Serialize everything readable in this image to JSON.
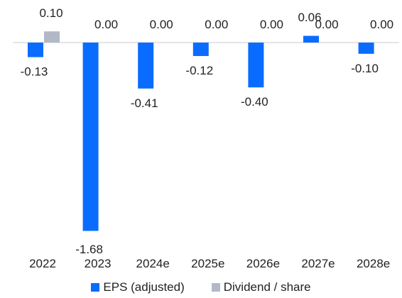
{
  "chart_data": {
    "type": "bar",
    "categories": [
      "2022",
      "2023",
      "2024e",
      "2025e",
      "2026e",
      "2027e",
      "2028e"
    ],
    "series": [
      {
        "name": "EPS (adjusted)",
        "color": "#0a6cff",
        "values": [
          -0.13,
          -1.68,
          -0.41,
          -0.12,
          -0.4,
          0.06,
          -0.1
        ],
        "labels": [
          "-0.13",
          "-1.68",
          "-0.41",
          "-0.12",
          "-0.40",
          "0.06",
          "-0.10"
        ]
      },
      {
        "name": "Dividend / share",
        "color": "#b3b8c6",
        "values": [
          0.1,
          0.0,
          0.0,
          0.0,
          0.0,
          0.0,
          0.0
        ],
        "labels": [
          "0.10",
          "0.00",
          "0.00",
          "0.00",
          "0.00",
          "0.00",
          "0.00"
        ]
      }
    ],
    "ylim": [
      -1.75,
      0.12
    ],
    "grid": false,
    "legend_position": "bottom-center",
    "zero_line_color": "#c7cbd4"
  }
}
